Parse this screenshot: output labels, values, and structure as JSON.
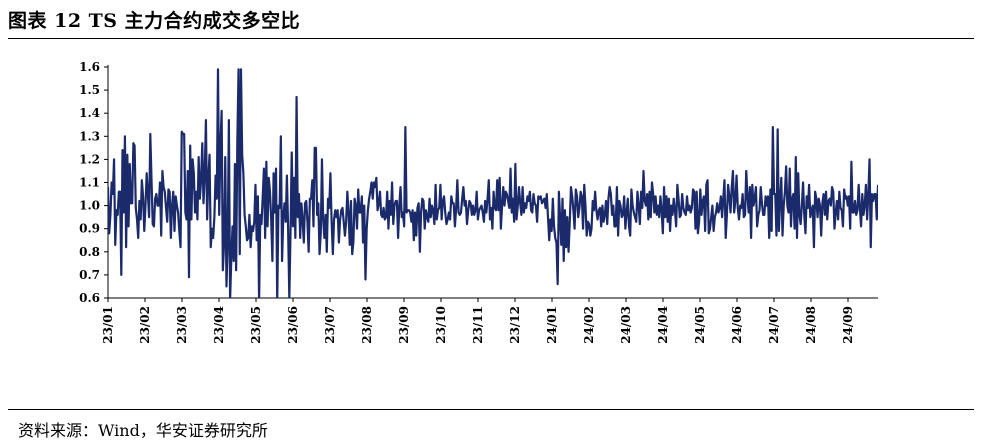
{
  "header": {
    "title": "图表 12 TS 主力合约成交多空比"
  },
  "footer": {
    "source": "资料来源：Wind，华安证券研究所"
  },
  "colors": {
    "line": "#1b2a6b",
    "axis": "#000000",
    "rule": "#000000"
  },
  "chart_data": {
    "type": "line",
    "title": "图表 12 TS 主力合约成交多空比",
    "xlabel": "",
    "ylabel": "",
    "ylim": [
      0.6,
      1.6
    ],
    "y_ticks": [
      "0.6",
      "0.7",
      "0.8",
      "0.9",
      "1.0",
      "1.1",
      "1.2",
      "1.3",
      "1.4",
      "1.5",
      "1.6"
    ],
    "x_ticks": [
      "23/01",
      "23/02",
      "23/03",
      "23/04",
      "23/05",
      "23/06",
      "23/07",
      "23/08",
      "23/09",
      "23/10",
      "23/11",
      "23/12",
      "24/01",
      "24/02",
      "24/03",
      "24/04",
      "24/05",
      "24/06",
      "24/07",
      "24/08",
      "24/09"
    ],
    "grid": false,
    "legend": "none",
    "x_index_range": [
      0,
      417
    ],
    "series": [
      {
        "values": [
          1.08,
          0.88,
          0.96,
          1.1,
          1.05,
          1.2,
          0.83,
          0.98,
          0.96,
          1.06,
          1.06,
          0.7,
          1.24,
          0.97,
          1.3,
          0.82,
          1.22,
          0.91,
          1.18,
          1.01,
          1.01,
          1.27,
          1.26,
          0.99,
          0.94,
          0.86,
          1.02,
          0.94,
          1.11,
          1.04,
          0.89,
          1.0,
          1.14,
          1.05,
          0.95,
          1.31,
          1.11,
          0.92,
          0.91,
          1.03,
          1.05,
          1.0,
          1.0,
          1.1,
          0.87,
          1.15,
          1.08,
          1.06,
          0.99,
          0.93,
          1.07,
          1.06,
          0.86,
          1.0,
          1.06,
          0.89,
          1.04,
          1.0,
          0.97,
          0.89,
          0.82,
          1.32,
          1.31,
          1.31,
          0.97,
          0.94,
          1.15,
          0.69,
          1.26,
          0.94,
          1.2,
          1.14,
          0.97,
          1.06,
          0.94,
          1.21,
          1.03,
          1.11,
          1.27,
          1.01,
          1.13,
          1.37,
          0.94,
          1.12,
          1.22,
          0.82,
          0.9,
          0.86,
          0.95,
          1.13,
          1.03,
          1.59,
          0.96,
          1.26,
          1.41,
          0.72,
          0.83,
          1.21,
          0.65,
          0.83,
          1.37,
          0.59,
          0.77,
          0.91,
          0.76,
          1.18,
          0.72,
          1.28,
          1.59,
          0.79,
          1.59,
          1.22,
          1.14,
          0.96,
          0.91,
          0.85,
          0.86,
          0.96,
          0.82,
          0.91,
          0.89,
          0.93,
          1.09,
          0.85,
          1.04,
          0.59,
          0.96,
          0.92,
          1.04,
          1.16,
          0.86,
          1.19,
          0.91,
          1.12,
          1.06,
          0.94,
          0.76,
          1.14,
          0.97,
          1.16,
          0.59,
          1.0,
          0.99,
          1.3,
          0.76,
          0.95,
          1.01,
          0.93,
          1.13,
          0.9,
          0.6,
          0.89,
          1.23,
          0.91,
          1.12,
          0.86,
          1.47,
          0.95,
          1.05,
          0.86,
          1.01,
          0.94,
          0.84,
          1.01,
          1.02,
          0.93,
          0.8,
          1.03,
          1.03,
          1.11,
          0.91,
          1.25,
          1.25,
          0.96,
          1.01,
          0.79,
          0.88,
          1.2,
          0.94,
          0.86,
          0.96,
          0.8,
          1.03,
          0.99,
          1.14,
          0.93,
          0.79,
          0.94,
          0.98,
          0.95,
          0.98,
          0.84,
          0.94,
          0.98,
          0.99,
          0.93,
          0.87,
          0.93,
          1.06,
          0.97,
          0.83,
          1.02,
          0.79,
          0.84,
          1.03,
          1.0,
          0.9,
          1.07,
          0.97,
          0.97,
          1.04,
          0.84,
          1.0,
          0.68,
          0.9,
          0.98,
          1.03,
          1.06,
          1.1,
          1.03,
          1.1,
          1.08,
          1.12,
          0.98,
          1.01,
          1.06,
          0.96,
          0.95,
          0.99,
          0.94,
          0.95,
          1.06,
          0.9,
          1.02,
          0.96,
          1.1,
          0.92,
          1.0,
          1.02,
          1.02,
          0.86,
          1.0,
          1.08,
          0.95,
          0.97,
          0.91,
          1.34,
          0.97,
          0.98,
          0.98,
          0.97,
          0.93,
          0.98,
          0.85,
          0.97,
          0.87,
          0.99,
          1.01,
          0.8,
          0.97,
          1.03,
          1.02,
          0.9,
          0.98,
          0.95,
          0.93,
          1.03,
          0.95,
          1.0,
          0.98,
          0.92,
          1.09,
          0.94,
          0.98,
          0.99,
          1.09,
          0.94,
          1.02,
          1.04,
          0.97,
          0.92,
          0.94,
          0.97,
          0.94,
          1.04,
          1.01,
          1.01,
          0.91,
          0.99,
          1.11,
          0.97,
          0.96,
          0.97,
          1.03,
          1.08,
          1.0,
          1.02,
          0.92,
          0.98,
          1.02,
          1.01,
          0.96,
          1.0,
          0.96,
          0.98,
          1.06,
          0.94,
          0.98,
          0.99,
          1.0,
          0.97,
          0.93,
          1.02,
          0.97,
          1.03,
          1.11,
          0.94,
          0.99,
          0.9,
          1.06,
          0.99,
          0.98,
          1.11,
          0.98,
          1.12,
          0.9,
          1.0,
          1.08,
          1.0,
          1.06,
          1.05,
          1.02,
          0.99,
          1.16,
          0.97,
          1.03,
          0.93,
          1.18,
          0.94,
          1.0,
          1.08,
          1.01,
          0.96,
          1.08,
          0.97,
          1.01,
          0.99,
          1.04,
          1.02,
          1.06,
          0.98,
          0.97,
          1.05,
          1.01,
          1.0,
          0.93,
          1.04,
          1.03,
          1.04,
          1.01,
          1.02,
          1.03,
          0.99,
          1.05,
          0.95,
          0.85,
          0.94,
          0.89,
          1.03,
          0.91,
          0.86,
          0.84,
          0.66,
          1.06,
          0.95,
          0.83,
          1.03,
          0.76,
          0.98,
          0.82,
          0.95,
          0.8,
          0.93,
          1.08,
          1.04,
          0.98,
          0.9,
          1.07,
          1.04,
          0.95,
          0.99,
          1.06,
          1.04,
          0.9,
          1.09,
          1.0,
          0.87,
          0.93,
          0.92,
          0.87,
          0.9,
          1.02,
          0.98,
          1.06,
          0.98,
          0.94,
          0.98,
          0.99,
          0.91,
          1.0,
          0.93,
          0.96,
          1.02,
          0.92,
          1.03,
          1.08,
          1.05,
          0.96,
          1.0,
          0.91,
          0.91,
          1.08,
          0.87,
          1.02,
          1.0,
          0.95,
          0.96,
          1.04,
          0.9,
          0.97,
          1.03,
          0.91,
          0.87,
          1.07,
          1.0,
          0.97,
          0.95,
          0.93,
          1.06,
          1.0,
          0.92,
          1.06,
          0.99,
          1.15,
          1.02,
          1.0,
          1.05,
          0.94,
          1.06,
          0.95,
          1.1,
          1.05,
          0.97,
          1.04,
          0.96,
          1.0,
          0.95,
          1.04,
          0.98,
          0.88,
          1.08,
          0.95,
          1.04,
          0.93,
          1.03,
          0.89,
          1.0,
          0.96,
          1.03,
          0.98,
          0.91,
          1.09,
          1.03,
          0.95,
          0.96,
          1.05,
          0.99,
          0.97,
          0.96,
          1.04,
          0.98,
          1.0,
          0.97,
          0.99,
          1.07,
          1.06,
          0.9,
          1.06,
          0.88,
          0.93,
          1.07,
          0.96,
          1.02,
          1.04,
          0.89,
          1.09,
          1.11,
          0.88,
          0.9,
          0.95,
          1.0,
          0.89,
          0.95,
          0.97,
          1.01,
          0.97,
          0.99,
          1.04,
          0.95,
          1.03,
          1.11,
          0.86,
          0.96,
          1.09,
          1.04,
          0.97,
          1.08,
          1.15,
          0.97,
          1.02,
          1.13,
          0.99,
          0.94,
          1.0,
          0.99,
          1.05,
          0.95,
          0.96,
          1.15,
          1.04,
          0.97,
          1.08,
          0.86,
          1.09,
          1.0,
          1.03,
          1.08,
          0.91,
          0.96,
          0.98,
          1.08,
          1.01,
          0.96,
          0.96,
          1.04,
          1.0,
          1.04,
          0.86,
          1.07,
          0.89,
          1.34,
          1.05,
          1.05,
          0.87,
          1.33,
          0.89,
          1.02,
          1.12,
          0.87,
          1.0,
          1.06,
          1.17,
          1.0,
          0.97,
          1.16,
          0.91,
          1.03,
          1.05,
          0.9,
          1.21,
          0.86,
          1.14,
          0.96,
          0.92,
          1.0,
          1.1,
          0.96,
          0.88,
          1.04,
          0.99,
          1.09,
          0.95,
          0.98,
          1.0,
          0.82,
          1.06,
          1.03,
          0.95,
          1.03,
          1.0,
          0.87,
          1.01,
          1.05,
          0.96,
          1.06,
          0.94,
          1.02,
          1.03,
          1.0,
          1.08,
          1.06,
          0.9,
          0.97,
          1.02,
          0.94,
          1.06,
          0.99,
          0.98,
          0.91,
          1.07,
          1.03,
          1.04,
          1.0,
          1.04,
          0.9,
          1.19,
          0.97,
          0.97,
          1.02,
          0.96,
          0.98,
          1.09,
          0.99,
          0.91,
          1.05,
          0.96,
          1.0,
          1.09,
          0.94,
          1.05,
          1.2,
          0.82,
          1.05,
          1.02,
          1.05,
          1.05,
          0.94,
          1.09
        ]
      }
    ]
  }
}
